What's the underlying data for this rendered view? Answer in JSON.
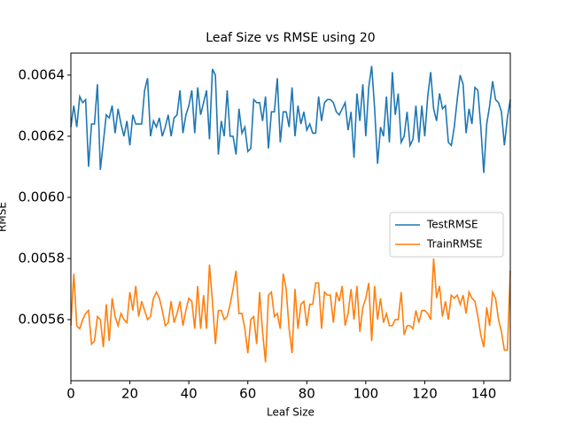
{
  "chart_data": {
    "type": "line",
    "title": "Leaf Size vs RMSE using 20",
    "xlabel": "Leaf Size",
    "ylabel": "RMSE",
    "x": [
      0,
      1,
      2,
      3,
      4,
      5,
      6,
      7,
      8,
      9,
      10,
      11,
      12,
      13,
      14,
      15,
      16,
      17,
      18,
      19,
      20,
      21,
      22,
      23,
      24,
      25,
      26,
      27,
      28,
      29,
      30,
      31,
      32,
      33,
      34,
      35,
      36,
      37,
      38,
      39,
      40,
      41,
      42,
      43,
      44,
      45,
      46,
      47,
      48,
      49,
      50,
      51,
      52,
      53,
      54,
      55,
      56,
      57,
      58,
      59,
      60,
      61,
      62,
      63,
      64,
      65,
      66,
      67,
      68,
      69,
      70,
      71,
      72,
      73,
      74,
      75,
      76,
      77,
      78,
      79,
      80,
      81,
      82,
      83,
      84,
      85,
      86,
      87,
      88,
      89,
      90,
      91,
      92,
      93,
      94,
      95,
      96,
      97,
      98,
      99,
      100,
      101,
      102,
      103,
      104,
      105,
      106,
      107,
      108,
      109,
      110,
      111,
      112,
      113,
      114,
      115,
      116,
      117,
      118,
      119,
      120,
      121,
      122,
      123,
      124,
      125,
      126,
      127,
      128,
      129,
      130,
      131,
      132,
      133,
      134,
      135,
      136,
      137,
      138,
      139,
      140,
      141,
      142,
      143,
      144,
      145,
      146,
      147,
      148,
      149
    ],
    "series": [
      {
        "name": "TestRMSE",
        "color": "#1f77b4",
        "values": [
          0.00623,
          0.0063,
          0.00623,
          0.00633,
          0.00631,
          0.00632,
          0.0061,
          0.00624,
          0.00624,
          0.00637,
          0.00609,
          0.00618,
          0.00627,
          0.00626,
          0.0063,
          0.00621,
          0.00629,
          0.00624,
          0.0062,
          0.00625,
          0.00617,
          0.00627,
          0.00624,
          0.00624,
          0.00624,
          0.00635,
          0.00639,
          0.0062,
          0.00625,
          0.00623,
          0.00626,
          0.0062,
          0.00623,
          0.00627,
          0.0062,
          0.00626,
          0.00627,
          0.00635,
          0.00621,
          0.00627,
          0.0063,
          0.00635,
          0.00621,
          0.00636,
          0.00627,
          0.00631,
          0.00635,
          0.00619,
          0.00642,
          0.0064,
          0.00614,
          0.00625,
          0.0062,
          0.00635,
          0.0062,
          0.0062,
          0.00614,
          0.00629,
          0.00621,
          0.00623,
          0.00615,
          0.00616,
          0.00632,
          0.00631,
          0.00631,
          0.00625,
          0.00633,
          0.00616,
          0.00628,
          0.00628,
          0.00639,
          0.00618,
          0.00628,
          0.00628,
          0.00623,
          0.00636,
          0.0062,
          0.0063,
          0.00624,
          0.00628,
          0.00622,
          0.00624,
          0.00621,
          0.00621,
          0.00633,
          0.00625,
          0.00631,
          0.00632,
          0.00632,
          0.00631,
          0.00628,
          0.00627,
          0.00629,
          0.00631,
          0.00622,
          0.00628,
          0.00613,
          0.00634,
          0.00625,
          0.00637,
          0.0062,
          0.00636,
          0.00643,
          0.00629,
          0.00611,
          0.00623,
          0.0062,
          0.00633,
          0.00618,
          0.00641,
          0.00627,
          0.00634,
          0.00618,
          0.0062,
          0.00628,
          0.00617,
          0.00619,
          0.0063,
          0.00618,
          0.0063,
          0.0062,
          0.00633,
          0.00641,
          0.00629,
          0.00625,
          0.00634,
          0.00629,
          0.0063,
          0.00618,
          0.00617,
          0.00623,
          0.00632,
          0.0064,
          0.00637,
          0.00621,
          0.00629,
          0.00624,
          0.00636,
          0.00635,
          0.00623,
          0.00608,
          0.00624,
          0.0063,
          0.00638,
          0.00632,
          0.00631,
          0.00628,
          0.00617,
          0.00626,
          0.00632
        ]
      },
      {
        "name": "TrainRMSE",
        "color": "#ff7f0e",
        "values": [
          0.00558,
          0.00575,
          0.00558,
          0.00557,
          0.0056,
          0.00562,
          0.00563,
          0.00552,
          0.00553,
          0.00561,
          0.0056,
          0.00551,
          0.00565,
          0.00553,
          0.00567,
          0.00561,
          0.00558,
          0.00562,
          0.0056,
          0.00559,
          0.00569,
          0.00563,
          0.00571,
          0.00561,
          0.00566,
          0.00563,
          0.0056,
          0.00561,
          0.00567,
          0.00569,
          0.00567,
          0.00563,
          0.00558,
          0.00559,
          0.00566,
          0.00559,
          0.00562,
          0.00566,
          0.00558,
          0.00563,
          0.00567,
          0.00566,
          0.00557,
          0.00571,
          0.00557,
          0.00568,
          0.00557,
          0.00578,
          0.00566,
          0.00552,
          0.00563,
          0.00563,
          0.0056,
          0.00561,
          0.00565,
          0.0057,
          0.00576,
          0.00562,
          0.00562,
          0.00557,
          0.00549,
          0.0056,
          0.00561,
          0.00552,
          0.00569,
          0.00556,
          0.00546,
          0.00568,
          0.00569,
          0.00561,
          0.00562,
          0.00557,
          0.00575,
          0.0057,
          0.00557,
          0.00549,
          0.0057,
          0.00557,
          0.00565,
          0.00566,
          0.00558,
          0.00565,
          0.00565,
          0.00572,
          0.00572,
          0.00557,
          0.00569,
          0.00568,
          0.00568,
          0.00559,
          0.00569,
          0.00566,
          0.00571,
          0.00558,
          0.00562,
          0.0057,
          0.0056,
          0.00571,
          0.00556,
          0.00564,
          0.00567,
          0.00572,
          0.00553,
          0.00571,
          0.0056,
          0.00567,
          0.00559,
          0.00562,
          0.00558,
          0.00558,
          0.0056,
          0.0056,
          0.00569,
          0.00555,
          0.00558,
          0.00558,
          0.00557,
          0.00563,
          0.00559,
          0.00563,
          0.00563,
          0.00562,
          0.0056,
          0.0058,
          0.00567,
          0.00571,
          0.00561,
          0.00566,
          0.0056,
          0.00568,
          0.00567,
          0.00568,
          0.00565,
          0.00568,
          0.00562,
          0.00569,
          0.00567,
          0.00566,
          0.00561,
          0.00555,
          0.00551,
          0.00564,
          0.00558,
          0.00569,
          0.00567,
          0.0056,
          0.00556,
          0.0055,
          0.0055,
          0.00576
        ]
      }
    ],
    "xlim": [
      0,
      149
    ],
    "xticks": [
      0,
      20,
      40,
      60,
      80,
      100,
      120,
      140
    ],
    "ylim": [
      0.0054,
      0.006472
    ],
    "yticks": [
      0.0056,
      0.0058,
      {
        "value": 0.006,
        "label": "0.0060"
      },
      0.0062,
      0.0064
    ],
    "legend": "center right"
  }
}
